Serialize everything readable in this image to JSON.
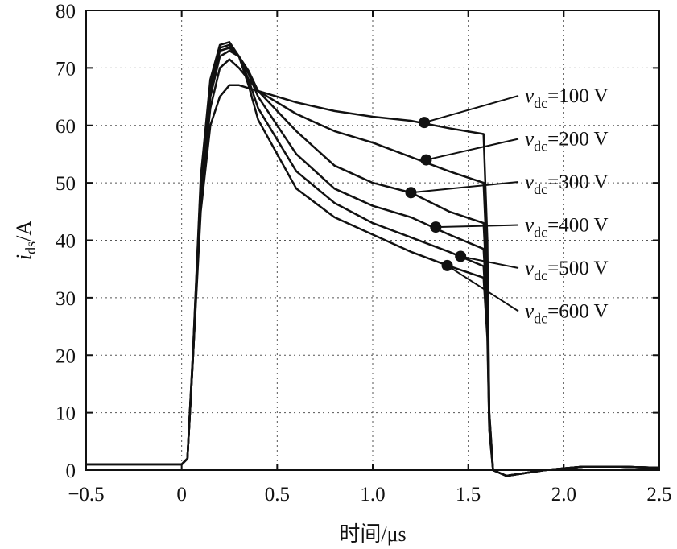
{
  "chart_data": {
    "type": "line",
    "xlabel": "时间/μs",
    "ylabel": {
      "main": "i",
      "sub": "ds",
      "rest": "/A"
    },
    "xlim": [
      -0.5,
      2.5
    ],
    "ylim": [
      0,
      80
    ],
    "xticks": [
      -0.5,
      0,
      0.5,
      1.0,
      1.5,
      2.0,
      2.5
    ],
    "xtick_labels": [
      "−0.5",
      "0",
      "0.5",
      "1.0",
      "1.5",
      "2.0",
      "2.5"
    ],
    "yticks": [
      0,
      10,
      20,
      30,
      40,
      50,
      60,
      70,
      80
    ],
    "ytick_labels": [
      "0",
      "10",
      "20",
      "30",
      "40",
      "50",
      "60",
      "70",
      "80"
    ],
    "grid": "dotted",
    "line_color": "#111111",
    "series": [
      {
        "label": {
          "main": "v",
          "sub": "dc",
          "rest": "=100 V"
        },
        "marker": [
          1.27,
          60.5
        ],
        "x": [
          -0.5,
          0.0,
          0.03,
          0.06,
          0.1,
          0.15,
          0.2,
          0.25,
          0.3,
          0.35,
          0.4,
          0.6,
          0.8,
          1.0,
          1.2,
          1.4,
          1.58,
          1.6,
          1.61,
          1.63,
          1.7,
          1.9,
          2.1,
          2.3,
          2.5
        ],
        "y": [
          1,
          1,
          2,
          20,
          45,
          60,
          65,
          67,
          67,
          66.5,
          66,
          64,
          62.5,
          61.5,
          60.8,
          59.5,
          58.5,
          40,
          10,
          0,
          -1,
          0,
          0.6,
          0.6,
          0.4
        ]
      },
      {
        "label": {
          "main": "v",
          "sub": "dc",
          "rest": "=200 V"
        },
        "marker": [
          1.28,
          54
        ],
        "x": [
          -0.5,
          0.0,
          0.03,
          0.06,
          0.1,
          0.15,
          0.2,
          0.25,
          0.3,
          0.35,
          0.4,
          0.6,
          0.8,
          1.0,
          1.2,
          1.4,
          1.58,
          1.6,
          1.61,
          1.63,
          1.7,
          1.9,
          2.1,
          2.3,
          2.5
        ],
        "y": [
          1,
          1,
          2,
          20,
          47,
          63,
          70,
          71.5,
          70,
          68,
          66,
          62,
          59,
          57,
          54.5,
          52,
          50,
          35,
          10,
          0,
          -1,
          0,
          0.6,
          0.6,
          0.4
        ]
      },
      {
        "label": {
          "main": "v",
          "sub": "dc",
          "rest": "=300 V"
        },
        "marker": [
          1.2,
          48.3
        ],
        "x": [
          -0.5,
          0.0,
          0.03,
          0.06,
          0.1,
          0.15,
          0.2,
          0.25,
          0.3,
          0.35,
          0.4,
          0.6,
          0.8,
          1.0,
          1.2,
          1.4,
          1.58,
          1.6,
          1.61,
          1.63,
          1.7,
          1.9,
          2.1,
          2.3,
          2.5
        ],
        "y": [
          1,
          1,
          2,
          20,
          48,
          65,
          72,
          73,
          72,
          69.5,
          66,
          59,
          53,
          50,
          48.3,
          45,
          43,
          30,
          8,
          0,
          -1,
          0,
          0.6,
          0.6,
          0.4
        ]
      },
      {
        "label": {
          "main": "v",
          "sub": "dc",
          "rest": "=400 V"
        },
        "marker": [
          1.33,
          42.3
        ],
        "x": [
          -0.5,
          0.0,
          0.03,
          0.06,
          0.1,
          0.15,
          0.2,
          0.25,
          0.3,
          0.35,
          0.4,
          0.6,
          0.8,
          1.0,
          1.2,
          1.4,
          1.58,
          1.6,
          1.61,
          1.63,
          1.7,
          1.9,
          2.1,
          2.3,
          2.5
        ],
        "y": [
          1,
          1,
          2,
          20,
          49,
          66,
          73,
          73.5,
          72,
          69,
          65,
          55,
          49,
          46,
          44,
          41,
          38.5,
          27,
          8,
          0,
          -1,
          0,
          0.6,
          0.6,
          0.4
        ]
      },
      {
        "label": {
          "main": "v",
          "sub": "dc",
          "rest": "=500 V"
        },
        "marker": [
          1.46,
          37.2
        ],
        "x": [
          -0.5,
          0.0,
          0.03,
          0.06,
          0.1,
          0.15,
          0.2,
          0.25,
          0.3,
          0.35,
          0.4,
          0.6,
          0.8,
          1.0,
          1.2,
          1.4,
          1.58,
          1.6,
          1.61,
          1.63,
          1.7,
          1.9,
          2.1,
          2.3,
          2.5
        ],
        "y": [
          1,
          1,
          2,
          21,
          50,
          67,
          73.5,
          74,
          72,
          68,
          63,
          52,
          46.5,
          43,
          40.5,
          38,
          35.5,
          25,
          7,
          0,
          -1,
          0,
          0.6,
          0.6,
          0.4
        ]
      },
      {
        "label": {
          "main": "v",
          "sub": "dc",
          "rest": "=600 V"
        },
        "marker": [
          1.39,
          35.6
        ],
        "x": [
          -0.5,
          0.0,
          0.03,
          0.06,
          0.1,
          0.15,
          0.2,
          0.25,
          0.3,
          0.35,
          0.4,
          0.6,
          0.8,
          1.0,
          1.2,
          1.4,
          1.58,
          1.6,
          1.61,
          1.63,
          1.7,
          1.9,
          2.1,
          2.3,
          2.5
        ],
        "y": [
          1,
          1,
          2,
          21,
          51,
          68,
          74,
          74.5,
          72,
          67,
          61,
          49,
          44,
          41,
          38,
          35.5,
          33.5,
          23,
          7,
          0,
          -1,
          0,
          0.6,
          0.6,
          0.4
        ]
      }
    ]
  }
}
